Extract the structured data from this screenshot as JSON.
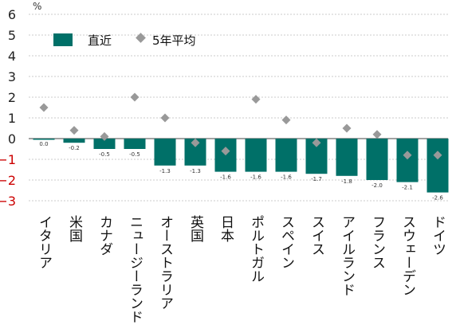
{
  "chart_data": {
    "type": "bar",
    "unit": "%",
    "ylim": [
      -3,
      6
    ],
    "yticks": [
      "6",
      "5",
      "4",
      "3",
      "2",
      "1",
      "0",
      "−1",
      "−2",
      "−3"
    ],
    "grid": true,
    "legend_position": "top-left",
    "categories": [
      "イタリア",
      "米国",
      "カナダ",
      "ニュージーランド",
      "オーストラリア",
      "英国",
      "日本",
      "ポルトガル",
      "スペイン",
      "スイス",
      "アイルランド",
      "フランス",
      "スウェーデン",
      "ドイツ"
    ],
    "series": [
      {
        "name": "直近",
        "type": "bar",
        "color": "#007068",
        "values": [
          0.0,
          -0.2,
          -0.5,
          -0.5,
          -1.3,
          -1.3,
          -1.6,
          -1.6,
          -1.6,
          -1.7,
          -1.8,
          -2.0,
          -2.1,
          -2.6
        ],
        "labels": [
          "0.0",
          "-0.2",
          "-0.5",
          "-0.5",
          "-1.3",
          "-1.3",
          "-1.6",
          "-1.6",
          "-1.6",
          "-1.7",
          "-1.8",
          "-2.0",
          "-2.1",
          "-2.6"
        ]
      },
      {
        "name": "5年平均",
        "type": "marker",
        "color": "#999999",
        "values": [
          1.5,
          0.4,
          0.1,
          2.0,
          1.0,
          -0.2,
          -0.6,
          1.9,
          0.9,
          -0.2,
          0.5,
          0.2,
          -0.8,
          -0.8
        ]
      }
    ]
  }
}
